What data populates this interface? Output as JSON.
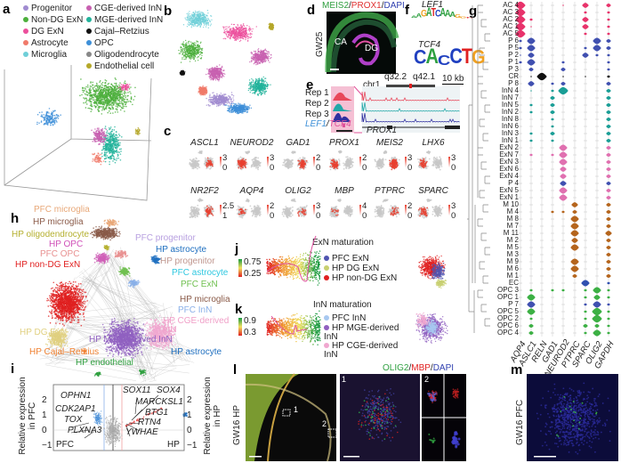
{
  "panels": {
    "a": "a",
    "b": "b",
    "c": "c",
    "d": "d",
    "e": "e",
    "f": "f",
    "g": "g",
    "h": "h",
    "i": "i",
    "j": "j",
    "k": "k",
    "l": "l",
    "m": "m"
  },
  "sep": "/",
  "a": {
    "legend": [
      {
        "label": "Progenitor",
        "color": "#a08bd0"
      },
      {
        "label": "Non-DG ExN",
        "color": "#4caf3c"
      },
      {
        "label": "DG ExN",
        "color": "#ec4f9c"
      },
      {
        "label": "Astrocyte",
        "color": "#f07a6a"
      },
      {
        "label": "Microglia",
        "color": "#6fcfd8"
      },
      {
        "label": "CGE-derived InN",
        "color": "#c860b0"
      },
      {
        "label": "MGE-derived InN",
        "color": "#22b39b"
      },
      {
        "label": "Cajal–Retzius",
        "color": "#111111"
      },
      {
        "label": "OPC",
        "color": "#3d8fd8"
      },
      {
        "label": "Oligodendrocyte",
        "color": "#888888"
      },
      {
        "label": "Endothelial cell",
        "color": "#b5a82a"
      }
    ]
  },
  "c": {
    "genes": [
      {
        "name": "ASCL1",
        "max": "3",
        "min": "0",
        "level": 0.3
      },
      {
        "name": "NEUROD2",
        "max": "3",
        "min": "0",
        "level": 0.9
      },
      {
        "name": "GAD1",
        "max": "2",
        "min": "0",
        "level": 0.5
      },
      {
        "name": "PROX1",
        "max": "2",
        "min": "0",
        "level": 0.5
      },
      {
        "name": "MEIS2",
        "max": "3",
        "min": "0",
        "level": 0.9
      },
      {
        "name": "LHX6",
        "max": "3",
        "min": "0",
        "level": 0.35
      },
      {
        "name": "NR2F2",
        "max": "2.5",
        "min": "1",
        "level": 0.35
      },
      {
        "name": "AQP4",
        "max": "2",
        "min": "0",
        "level": 0.2
      },
      {
        "name": "OLIG2",
        "max": "3",
        "min": "0",
        "level": 0.15
      },
      {
        "name": "MBP",
        "max": "4",
        "min": "0",
        "level": 0.1
      },
      {
        "name": "PTPRC",
        "max": "2",
        "min": "0",
        "level": 0.2
      },
      {
        "name": "SPARC",
        "max": "3",
        "min": "0",
        "level": 0.3
      }
    ]
  },
  "d": {
    "stains": [
      {
        "name": "MEIS2",
        "color": "#2e9e3e"
      },
      {
        "name": "PROX1",
        "color": "#e03030"
      },
      {
        "name": "DAPI",
        "color": "#3040b0"
      }
    ],
    "age": "GW25",
    "regions": [
      "CA",
      "DG"
    ]
  },
  "e": {
    "reps": [
      "Rep 1",
      "Rep 2",
      "Rep 3"
    ],
    "motif_a": "LEF1",
    "motif_b": "TCF4",
    "chr": "chr1",
    "band1": "q32.2",
    "band2": "q42.1",
    "scale": "10 kb",
    "gene": "PROX1",
    "rep_colors": [
      "#e8485a",
      "#22a8a8",
      "#3030a0"
    ]
  },
  "f": {
    "motif1": "LEF1",
    "motif1_seq": "AAGATCAAAGGTT",
    "motif2": "TCF4",
    "motif2_seq": "CACCTG"
  },
  "g": {
    "genes": [
      "AQP4",
      "ASLC1",
      "RELN",
      "GAD1",
      "NEUROD2",
      "PTPRC",
      "SPARC",
      "OLIG2",
      "GAPDH"
    ],
    "rows": [
      {
        "label": "AC 4",
        "color": "#e8336b",
        "expr": [
          3,
          0,
          0,
          0,
          0.5,
          0,
          2,
          0,
          1.5
        ]
      },
      {
        "label": "AC 3",
        "color": "#e8336b",
        "expr": [
          3,
          0,
          0,
          0,
          0,
          0,
          1,
          0,
          1
        ]
      },
      {
        "label": "AC 2",
        "color": "#e8336b",
        "expr": [
          3,
          1,
          0,
          0,
          0,
          0,
          2,
          0,
          1
        ]
      },
      {
        "label": "AC 1",
        "color": "#e8336b",
        "expr": [
          3,
          0.5,
          0,
          0,
          0,
          0,
          2,
          0,
          1
        ]
      },
      {
        "label": "AC 5",
        "color": "#e8336b",
        "expr": [
          3,
          0,
          0,
          0,
          0,
          0,
          1,
          0,
          1
        ]
      },
      {
        "label": "P 6",
        "color": "#4050b0",
        "expr": [
          1,
          2.5,
          0,
          0,
          0,
          0,
          0,
          2.5,
          1.5
        ]
      },
      {
        "label": "P 5",
        "color": "#4050b0",
        "expr": [
          1,
          2.5,
          0,
          0,
          0,
          0,
          1,
          2.5,
          1.5
        ]
      },
      {
        "label": "P 2",
        "color": "#4050b0",
        "expr": [
          0.5,
          2,
          0,
          0,
          0,
          0,
          2,
          1,
          1
        ]
      },
      {
        "label": "P 1",
        "color": "#4050b0",
        "expr": [
          1,
          2.5,
          0,
          0,
          1,
          0,
          0,
          0,
          1
        ]
      },
      {
        "label": "P 3",
        "color": "#4050b0",
        "expr": [
          0,
          1.5,
          0,
          0,
          1.5,
          0,
          0,
          0,
          1
        ]
      },
      {
        "label": "CR",
        "color": "#111111",
        "expr": [
          0,
          0.5,
          3,
          0,
          0.5,
          0,
          0.5,
          0,
          1
        ]
      },
      {
        "label": "P 8",
        "color": "#4050b0",
        "expr": [
          0,
          2,
          0,
          1,
          1.5,
          0,
          0,
          0,
          1.5
        ]
      },
      {
        "label": "InN 4",
        "color": "#1a9e96",
        "expr": [
          0,
          0.5,
          0,
          1,
          3,
          0,
          0,
          0,
          1.5
        ]
      },
      {
        "label": "InN 7",
        "color": "#1a9e96",
        "expr": [
          0,
          0,
          0,
          1.5,
          0,
          0,
          0,
          0,
          1.5
        ]
      },
      {
        "label": "InN 5",
        "color": "#1a9e96",
        "expr": [
          0,
          1,
          0,
          1.5,
          0,
          0,
          0,
          0,
          1.5
        ]
      },
      {
        "label": "InN 2",
        "color": "#1a9e96",
        "expr": [
          0,
          1,
          0,
          1.5,
          0,
          0,
          0,
          0,
          1.5
        ]
      },
      {
        "label": "InN 8",
        "color": "#1a9e96",
        "expr": [
          0,
          0,
          0,
          1,
          0,
          0,
          0,
          0,
          1.5
        ]
      },
      {
        "label": "InN 6",
        "color": "#1a9e96",
        "expr": [
          0,
          0,
          0,
          1,
          0,
          0,
          0,
          0,
          1.5
        ]
      },
      {
        "label": "InN 3",
        "color": "#1a9e96",
        "expr": [
          0,
          1,
          0,
          1.5,
          0,
          0,
          0,
          0,
          1.5
        ]
      },
      {
        "label": "InN 1",
        "color": "#1a9e96",
        "expr": [
          0,
          1,
          0,
          1,
          0,
          0,
          0,
          0,
          1.5
        ]
      },
      {
        "label": "ExN 2",
        "color": "#e070b0",
        "expr": [
          0,
          0,
          0,
          0,
          2.5,
          0,
          0,
          0,
          1.5
        ]
      },
      {
        "label": "ExN 7",
        "color": "#e070b0",
        "expr": [
          0,
          1,
          0,
          1,
          2.5,
          0,
          0,
          0,
          1.5
        ]
      },
      {
        "label": "ExN 3",
        "color": "#e070b0",
        "expr": [
          0,
          0,
          0,
          0,
          2.5,
          0,
          0,
          0,
          1.5
        ]
      },
      {
        "label": "ExN 6",
        "color": "#e070b0",
        "expr": [
          0,
          0,
          0,
          0,
          2,
          0,
          0,
          0,
          1.5
        ]
      },
      {
        "label": "ExN 4",
        "color": "#e070b0",
        "expr": [
          0,
          0,
          0,
          0,
          2,
          0,
          0,
          0,
          1.5
        ]
      },
      {
        "label": "P 4",
        "color": "#4050b0",
        "expr": [
          0,
          0,
          0,
          0,
          2,
          0,
          0,
          0,
          1.5
        ]
      },
      {
        "label": "ExN 5",
        "color": "#e070b0",
        "expr": [
          0,
          0,
          0,
          0,
          2.5,
          0,
          0,
          0,
          1.5
        ]
      },
      {
        "label": "ExN 1",
        "color": "#e070b0",
        "expr": [
          0,
          0,
          0,
          0,
          2.5,
          0,
          0,
          0,
          1.5
        ]
      },
      {
        "label": "M 10",
        "color": "#b5651d",
        "expr": [
          0,
          0,
          0,
          0,
          0,
          2,
          0,
          0,
          1.5
        ]
      },
      {
        "label": "M 4",
        "color": "#b5651d",
        "expr": [
          0,
          0,
          0,
          1,
          1,
          1.5,
          0,
          0,
          1.5
        ]
      },
      {
        "label": "M 8",
        "color": "#b5651d",
        "expr": [
          0,
          0,
          0,
          0,
          0,
          2.5,
          0,
          0,
          1.5
        ]
      },
      {
        "label": "M 7",
        "color": "#b5651d",
        "expr": [
          0,
          0,
          0,
          0,
          0,
          2.5,
          0,
          0,
          1.5
        ]
      },
      {
        "label": "M 11",
        "color": "#b5651d",
        "expr": [
          0,
          0,
          0,
          0,
          0,
          2.5,
          0,
          0,
          2
        ]
      },
      {
        "label": "M 2",
        "color": "#b5651d",
        "expr": [
          0,
          0,
          0,
          0,
          0,
          2,
          0,
          0,
          1.5
        ]
      },
      {
        "label": "M 5",
        "color": "#b5651d",
        "expr": [
          0,
          0,
          0,
          0,
          0,
          2.5,
          0,
          0,
          1.5
        ]
      },
      {
        "label": "M 3",
        "color": "#b5651d",
        "expr": [
          0,
          0,
          0,
          0,
          0,
          0,
          0,
          0,
          1.5
        ]
      },
      {
        "label": "M 9",
        "color": "#b5651d",
        "expr": [
          0,
          0,
          0,
          0,
          0,
          2.5,
          0,
          0,
          1.5
        ]
      },
      {
        "label": "M 6",
        "color": "#b5651d",
        "expr": [
          0,
          0,
          0,
          0,
          0,
          2.5,
          0,
          0,
          1.5
        ]
      },
      {
        "label": "M 1",
        "color": "#b5651d",
        "expr": [
          0,
          0,
          0,
          0,
          0,
          1.5,
          0,
          0,
          1.5
        ]
      },
      {
        "label": "EC",
        "color": "#3050b0",
        "expr": [
          0,
          0,
          0,
          0,
          0,
          0,
          2.5,
          0,
          1
        ]
      },
      {
        "label": "OPC 3",
        "color": "#3cb044",
        "expr": [
          0,
          1,
          0,
          1,
          1,
          0,
          1,
          2.5,
          1
        ]
      },
      {
        "label": "OPC 1",
        "color": "#3cb044",
        "expr": [
          0,
          2.5,
          0,
          0,
          0,
          0,
          1,
          2,
          1
        ]
      },
      {
        "label": "P 7",
        "color": "#4050b0",
        "expr": [
          0,
          2.5,
          0,
          0,
          0,
          0,
          1,
          2.5,
          1
        ]
      },
      {
        "label": "OPC 5",
        "color": "#3cb044",
        "expr": [
          0,
          2.5,
          0,
          0,
          0,
          0,
          1,
          3,
          1
        ]
      },
      {
        "label": "OPC 2",
        "color": "#3cb044",
        "expr": [
          0,
          1,
          0,
          0,
          0,
          0,
          1,
          3,
          1
        ]
      },
      {
        "label": "OPC 6",
        "color": "#3cb044",
        "expr": [
          0,
          1.5,
          0,
          0,
          0,
          0,
          1.5,
          1.5,
          1
        ]
      },
      {
        "label": "OPC 4",
        "color": "#3cb044",
        "expr": [
          0,
          1.5,
          0,
          0,
          0,
          0,
          1,
          2.5,
          1
        ]
      }
    ]
  },
  "h": {
    "labels": [
      {
        "text": "PFC  microglia",
        "color": "#e8a878"
      },
      {
        "text": "HP microglia",
        "color": "#8a5a48"
      },
      {
        "text": "HP oligodendrocyte",
        "color": "#b5b030"
      },
      {
        "text": "HP OPC",
        "color": "#d050b8"
      },
      {
        "text": "PFC OPC",
        "color": "#e89090"
      },
      {
        "text": "HP non-DG ExN",
        "color": "#e02020"
      },
      {
        "text": "PFC progenitor",
        "color": "#b8a0e0"
      },
      {
        "text": "HP astrocyte",
        "color": "#2070c0"
      },
      {
        "text": "HP progenitor",
        "color": "#c09890"
      },
      {
        "text": "PFC astrocyte",
        "color": "#30c8e0"
      },
      {
        "text": "PFC ExN",
        "color": "#70c050"
      },
      {
        "text": "HP microglia",
        "color": "#8a5a48"
      },
      {
        "text": "PFC InN",
        "color": "#8ab0e8"
      },
      {
        "text": "HP CGE-derived InN",
        "color": "#f0a0c8"
      },
      {
        "text": "HP DG ExN",
        "color": "#e0d080"
      },
      {
        "text": "HP MGE-derived InN",
        "color": "#9060c0"
      },
      {
        "text": "HP astrocyte",
        "color": "#2070c0"
      },
      {
        "text": "HP Cajal–Retzius",
        "color": "#f08030"
      },
      {
        "text": "HP endothelial",
        "color": "#30a040"
      }
    ]
  },
  "i": {
    "ylabel_left": "Relative expression in PFC",
    "ylabel_right": "Relative expression in HP",
    "ticks": [
      "2",
      "1",
      "0",
      "−1"
    ],
    "corner_left": "PFC",
    "corner_right": "HP",
    "genes_left": [
      "OPHN1",
      "CDK2AP1",
      "TOX",
      "PLXNA3"
    ],
    "genes_right": [
      "SOX11",
      "SOX4",
      "MARCKSL1",
      "BTG1",
      "RTN4",
      "YWHAE"
    ]
  },
  "j": {
    "title": "ExN maturation",
    "scale_high": "0.75",
    "scale_low": "0.25",
    "legend": [
      {
        "label": "PFC ExN",
        "color": "#5055b0"
      },
      {
        "label": "HP DG ExN",
        "color": "#c8d070"
      },
      {
        "label": "HP non-DG ExN",
        "color": "#e02020"
      }
    ]
  },
  "k": {
    "title": "InN maturation",
    "scale_high": "0.9",
    "scale_low": "0.3",
    "legend": [
      {
        "label": "PFC InN",
        "color": "#a8c8f0"
      },
      {
        "label": "HP MGE-derived InN",
        "color": "#9060c0"
      },
      {
        "label": "HP CGE-derived InN",
        "color": "#f0a8d0"
      }
    ]
  },
  "l": {
    "stains": [
      {
        "name": "OLIG2",
        "color": "#2ea040"
      },
      {
        "name": "MBP",
        "color": "#e02020"
      },
      {
        "name": "DAPI",
        "color": "#3040b0"
      }
    ],
    "age": "GW16 HP",
    "inset1": "1",
    "inset2": "2"
  },
  "m": {
    "age": "GW16 PFC"
  }
}
